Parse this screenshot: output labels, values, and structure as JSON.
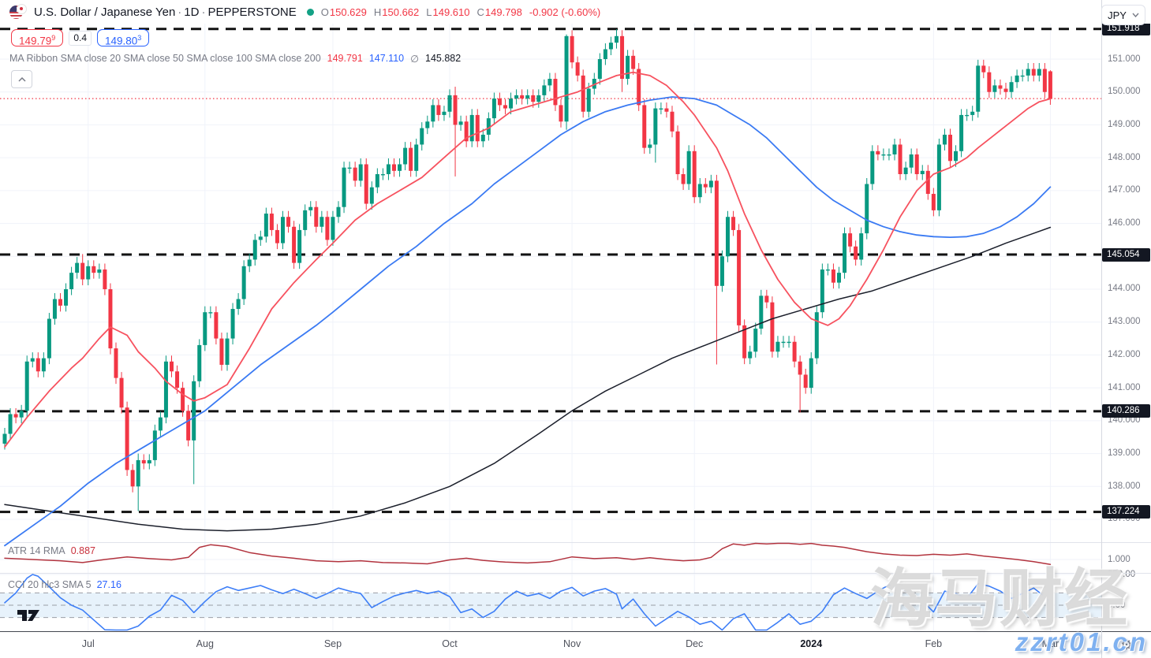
{
  "header": {
    "symbol": "U.S. Dollar / Japanese Yen",
    "separator": "·",
    "interval": "1D",
    "exchange": "PEPPERSTONE",
    "ohlc": [
      {
        "k": "O",
        "v": "150.629"
      },
      {
        "k": "H",
        "v": "150.662"
      },
      {
        "k": "L",
        "v": "149.610"
      },
      {
        "k": "C",
        "v": "149.798"
      }
    ],
    "change": "-0.902 (-0.60%)"
  },
  "quote": {
    "bid_main": "149.79",
    "bid_sup": "9",
    "spread": "0.4",
    "ask_main": "149.80",
    "ask_sup": "3"
  },
  "ma_ribbon": {
    "label": "MA Ribbon SMA close 20 SMA close 50 SMA close 100 SMA close 200",
    "values": [
      {
        "text": "149.791",
        "color": "#F23645"
      },
      {
        "text": "147.110",
        "color": "#2962FF"
      },
      {
        "text": "∅",
        "color": "#787B86"
      },
      {
        "text": "145.882",
        "color": "#131722"
      }
    ]
  },
  "indicators": {
    "atr": {
      "label": "ATR 14 RMA",
      "value": "0.887",
      "value_color": "#C9303C"
    },
    "cci": {
      "label": "CCI 20 hlc3 SMA 5",
      "value": "27.16",
      "value_color": "#2962FF"
    }
  },
  "price_axis": {
    "currency": "JPY",
    "atr_ticks": [
      {
        "label": "1.000",
        "value": 1
      }
    ],
    "cci_ticks": [
      {
        "label": "250.00",
        "value": 250
      },
      {
        "label": "0.00",
        "value": 0
      }
    ]
  },
  "time_axis": {
    "ticks": [
      {
        "label": "Jul",
        "i": 15
      },
      {
        "label": "Aug",
        "i": 36
      },
      {
        "label": "Sep",
        "i": 59
      },
      {
        "label": "Oct",
        "i": 80
      },
      {
        "label": "Nov",
        "i": 102
      },
      {
        "label": "Dec",
        "i": 124
      },
      {
        "label": "2024",
        "i": 145,
        "year": true
      },
      {
        "label": "Feb",
        "i": 167
      },
      {
        "label": "Mar",
        "i": 188
      }
    ]
  },
  "watermark": {
    "line1": "海马财经",
    "line2": "zzrt01.cn"
  },
  "colors": {
    "up": "#089981",
    "down": "#F23645",
    "sma20": "#F7525F",
    "sma50": "#3A7AF3",
    "sma200": "#1B1F2B",
    "atr_line": "#B2333E",
    "cci_line": "#3D7EF7",
    "level": "#111111",
    "grid": "#F0F3FA",
    "band": "#E7F2FB",
    "band_line": "#9A9DA6"
  },
  "chart_data": {
    "type": "candlestick",
    "title": "U.S. Dollar / Japanese Yen 1D PEPPERSTONE",
    "ylabel": "JPY",
    "ylim_main": [
      136.3,
      152.1
    ],
    "grid": true,
    "closes": [
      139.6,
      140.2,
      140.1,
      140.3,
      141.8,
      141.9,
      141.5,
      141.9,
      143.1,
      143.7,
      143.5,
      144.0,
      144.5,
      144.8,
      144.3,
      144.7,
      144.5,
      144.6,
      144.0,
      142.2,
      141.3,
      140.4,
      138.5,
      138.0,
      138.8,
      138.7,
      138.8,
      139.7,
      140.1,
      141.8,
      141.5,
      141.0,
      140.3,
      139.4,
      141.2,
      142.3,
      143.3,
      143.3,
      142.5,
      141.7,
      142.5,
      143.4,
      143.7,
      144.7,
      144.9,
      145.5,
      145.6,
      146.3,
      145.8,
      145.4,
      146.2,
      145.9,
      144.8,
      145.8,
      146.4,
      146.5,
      145.9,
      146.2,
      145.5,
      146.2,
      146.5,
      147.7,
      147.7,
      147.3,
      147.8,
      146.6,
      147.1,
      147.5,
      147.5,
      147.8,
      147.6,
      147.8,
      148.3,
      147.6,
      148.4,
      148.9,
      149.1,
      149.6,
      149.3,
      149.4,
      149.9,
      149.0,
      149.1,
      148.5,
      149.3,
      148.5,
      148.7,
      149.2,
      149.8,
      149.6,
      149.5,
      149.8,
      149.9,
      149.8,
      149.9,
      149.7,
      149.9,
      150.2,
      150.4,
      149.6,
      149.1,
      151.7,
      150.9,
      150.5,
      149.4,
      150.1,
      150.4,
      151.0,
      151.3,
      151.5,
      151.7,
      150.4,
      151.1,
      150.7,
      149.6,
      148.3,
      148.4,
      149.5,
      149.5,
      149.4,
      148.8,
      147.5,
      147.2,
      148.2,
      146.8,
      147.2,
      147.1,
      147.3,
      144.1,
      145.0,
      146.2,
      145.8,
      142.9,
      141.9,
      142.1,
      142.8,
      143.8,
      143.6,
      142.1,
      142.4,
      142.4,
      142.4,
      141.8,
      141.4,
      141.0,
      141.9,
      143.3,
      144.6,
      144.6,
      144.2,
      144.5,
      145.7,
      145.3,
      144.9,
      145.7,
      147.2,
      148.2,
      148.1,
      148.1,
      148.1,
      148.4,
      147.5,
      147.7,
      148.1,
      147.5,
      147.6,
      146.9,
      146.4,
      148.4,
      148.7,
      147.9,
      148.2,
      149.3,
      149.3,
      149.4,
      150.8,
      150.6,
      150.0,
      150.2,
      150.1,
      150.0,
      150.3,
      150.5,
      150.5,
      150.7,
      150.5,
      150.7,
      150.0,
      149.798
    ],
    "open_overrides": {
      "188": 150.629
    },
    "wick_overrides": {
      "14": [
        145.07,
        null
      ],
      "24": [
        139.0,
        137.25
      ],
      "34": [
        null,
        138.07
      ],
      "81": [
        150.16,
        147.43
      ],
      "101": [
        151.75,
        148.85
      ],
      "110": [
        151.91,
        null
      ],
      "111": [
        null,
        150.0
      ],
      "117": [
        null,
        147.85
      ],
      "128": [
        null,
        141.71
      ],
      "143": [
        null,
        140.25
      ],
      "188": [
        150.662,
        149.61
      ]
    },
    "levels": [
      151.918,
      145.054,
      140.286,
      137.224
    ],
    "close_line": 149.798,
    "price_ticks": [
      151,
      150,
      149,
      148,
      147,
      146,
      145,
      144,
      143,
      142,
      141,
      140,
      139,
      138,
      137
    ],
    "sma20": [
      [
        0,
        139.2
      ],
      [
        4,
        140.1
      ],
      [
        8,
        140.9
      ],
      [
        12,
        141.6
      ],
      [
        14,
        141.9
      ],
      [
        17,
        142.5
      ],
      [
        19,
        142.85
      ],
      [
        22,
        142.6
      ],
      [
        24,
        142.1
      ],
      [
        27,
        141.6
      ],
      [
        29,
        141.2
      ],
      [
        32,
        140.8
      ],
      [
        34,
        140.6
      ],
      [
        36,
        140.7
      ],
      [
        40,
        141.1
      ],
      [
        44,
        142.2
      ],
      [
        48,
        143.4
      ],
      [
        52,
        144.2
      ],
      [
        56,
        144.9
      ],
      [
        59,
        145.4
      ],
      [
        63,
        146.1
      ],
      [
        67,
        146.6
      ],
      [
        71,
        147.0
      ],
      [
        75,
        147.4
      ],
      [
        79,
        148.0
      ],
      [
        83,
        148.6
      ],
      [
        87,
        148.9
      ],
      [
        91,
        149.4
      ],
      [
        95,
        149.6
      ],
      [
        99,
        149.8
      ],
      [
        103,
        150.0
      ],
      [
        107,
        150.3
      ],
      [
        110,
        150.5
      ],
      [
        113,
        150.6
      ],
      [
        116,
        150.5
      ],
      [
        119,
        150.2
      ],
      [
        122,
        149.7
      ],
      [
        124,
        149.3
      ],
      [
        126,
        148.8
      ],
      [
        128,
        148.3
      ],
      [
        130,
        147.6
      ],
      [
        133,
        146.3
      ],
      [
        136,
        145.2
      ],
      [
        139,
        144.3
      ],
      [
        142,
        143.6
      ],
      [
        145,
        143.1
      ],
      [
        148,
        142.9
      ],
      [
        150,
        143.1
      ],
      [
        152,
        143.5
      ],
      [
        155,
        144.3
      ],
      [
        158,
        145.2
      ],
      [
        161,
        146.2
      ],
      [
        164,
        147.0
      ],
      [
        167,
        147.5
      ],
      [
        170,
        147.7
      ],
      [
        173,
        148.0
      ],
      [
        175,
        148.3
      ],
      [
        178,
        148.7
      ],
      [
        181,
        149.1
      ],
      [
        184,
        149.5
      ],
      [
        186,
        149.7
      ],
      [
        188,
        149.791
      ]
    ],
    "sma50": [
      [
        0,
        136.2
      ],
      [
        5,
        136.8
      ],
      [
        10,
        137.4
      ],
      [
        15,
        138.1
      ],
      [
        20,
        138.7
      ],
      [
        25,
        139.2
      ],
      [
        29,
        139.6
      ],
      [
        33,
        140.0
      ],
      [
        36,
        140.3
      ],
      [
        41,
        141.0
      ],
      [
        46,
        141.7
      ],
      [
        51,
        142.3
      ],
      [
        56,
        142.9
      ],
      [
        59,
        143.3
      ],
      [
        64,
        144.0
      ],
      [
        69,
        144.7
      ],
      [
        74,
        145.3
      ],
      [
        79,
        146.0
      ],
      [
        84,
        146.6
      ],
      [
        88,
        147.2
      ],
      [
        92,
        147.7
      ],
      [
        96,
        148.2
      ],
      [
        100,
        148.7
      ],
      [
        104,
        149.1
      ],
      [
        108,
        149.4
      ],
      [
        112,
        149.6
      ],
      [
        116,
        149.75
      ],
      [
        120,
        149.85
      ],
      [
        124,
        149.8
      ],
      [
        128,
        149.6
      ],
      [
        131,
        149.3
      ],
      [
        134,
        149.0
      ],
      [
        137,
        148.6
      ],
      [
        140,
        148.1
      ],
      [
        143,
        147.6
      ],
      [
        146,
        147.1
      ],
      [
        149,
        146.7
      ],
      [
        152,
        146.4
      ],
      [
        155,
        146.1
      ],
      [
        158,
        145.9
      ],
      [
        161,
        145.75
      ],
      [
        164,
        145.65
      ],
      [
        167,
        145.6
      ],
      [
        170,
        145.58
      ],
      [
        173,
        145.6
      ],
      [
        176,
        145.7
      ],
      [
        179,
        145.9
      ],
      [
        182,
        146.2
      ],
      [
        185,
        146.6
      ],
      [
        188,
        147.11
      ]
    ],
    "sma200": [
      [
        0,
        137.45
      ],
      [
        8,
        137.25
      ],
      [
        16,
        137.05
      ],
      [
        24,
        136.85
      ],
      [
        32,
        136.7
      ],
      [
        40,
        136.65
      ],
      [
        48,
        136.7
      ],
      [
        56,
        136.85
      ],
      [
        64,
        137.1
      ],
      [
        72,
        137.5
      ],
      [
        80,
        138.0
      ],
      [
        88,
        138.7
      ],
      [
        96,
        139.6
      ],
      [
        102,
        140.3
      ],
      [
        108,
        140.9
      ],
      [
        114,
        141.4
      ],
      [
        120,
        141.9
      ],
      [
        126,
        142.3
      ],
      [
        132,
        142.7
      ],
      [
        138,
        143.1
      ],
      [
        144,
        143.4
      ],
      [
        150,
        143.7
      ],
      [
        156,
        143.95
      ],
      [
        162,
        144.3
      ],
      [
        168,
        144.65
      ],
      [
        174,
        145.0
      ],
      [
        180,
        145.4
      ],
      [
        185,
        145.7
      ],
      [
        188,
        145.882
      ]
    ],
    "atr": [
      [
        0,
        1.03
      ],
      [
        5,
        1.0
      ],
      [
        10,
        0.97
      ],
      [
        14,
        0.93
      ],
      [
        18,
        1.0
      ],
      [
        22,
        1.06
      ],
      [
        26,
        1.02
      ],
      [
        30,
        0.99
      ],
      [
        33,
        1.05
      ],
      [
        35,
        1.28
      ],
      [
        37,
        1.34
      ],
      [
        40,
        1.3
      ],
      [
        44,
        1.16
      ],
      [
        48,
        1.08
      ],
      [
        52,
        1.03
      ],
      [
        56,
        0.97
      ],
      [
        60,
        0.95
      ],
      [
        64,
        0.97
      ],
      [
        68,
        0.93
      ],
      [
        72,
        0.92
      ],
      [
        76,
        0.9
      ],
      [
        80,
        0.99
      ],
      [
        83,
        1.03
      ],
      [
        86,
        0.98
      ],
      [
        90,
        0.94
      ],
      [
        94,
        0.92
      ],
      [
        98,
        0.95
      ],
      [
        102,
        1.06
      ],
      [
        106,
        1.02
      ],
      [
        110,
        1.04
      ],
      [
        113,
        1.0
      ],
      [
        116,
        1.04
      ],
      [
        119,
        1.0
      ],
      [
        122,
        0.97
      ],
      [
        125,
        0.99
      ],
      [
        127,
        1.05
      ],
      [
        129,
        1.25
      ],
      [
        131,
        1.36
      ],
      [
        133,
        1.33
      ],
      [
        135,
        1.38
      ],
      [
        137,
        1.36
      ],
      [
        139,
        1.41
      ],
      [
        141,
        1.38
      ],
      [
        143,
        1.35
      ],
      [
        145,
        1.37
      ],
      [
        147,
        1.33
      ],
      [
        149,
        1.31
      ],
      [
        151,
        1.28
      ],
      [
        153,
        1.23
      ],
      [
        155,
        1.18
      ],
      [
        158,
        1.13
      ],
      [
        161,
        1.1
      ],
      [
        164,
        1.09
      ],
      [
        167,
        1.12
      ],
      [
        170,
        1.1
      ],
      [
        173,
        1.13
      ],
      [
        176,
        1.08
      ],
      [
        179,
        1.04
      ],
      [
        182,
        1.0
      ],
      [
        185,
        0.95
      ],
      [
        188,
        0.887
      ]
    ],
    "cci_band": [
      100,
      -100
    ],
    "cci": [
      [
        0,
        20
      ],
      [
        2,
        100
      ],
      [
        4,
        220
      ],
      [
        5,
        250
      ],
      [
        6,
        235
      ],
      [
        8,
        150
      ],
      [
        10,
        60
      ],
      [
        12,
        0
      ],
      [
        14,
        -40
      ],
      [
        16,
        -120
      ],
      [
        18,
        -200
      ],
      [
        20,
        -235
      ],
      [
        22,
        -240
      ],
      [
        24,
        -170
      ],
      [
        26,
        -90
      ],
      [
        28,
        -40
      ],
      [
        30,
        80
      ],
      [
        32,
        40
      ],
      [
        34,
        -60
      ],
      [
        36,
        30
      ],
      [
        38,
        110
      ],
      [
        40,
        150
      ],
      [
        42,
        120
      ],
      [
        44,
        140
      ],
      [
        46,
        160
      ],
      [
        48,
        125
      ],
      [
        50,
        95
      ],
      [
        52,
        130
      ],
      [
        54,
        95
      ],
      [
        56,
        55
      ],
      [
        58,
        95
      ],
      [
        60,
        140
      ],
      [
        62,
        115
      ],
      [
        64,
        95
      ],
      [
        66,
        -20
      ],
      [
        68,
        30
      ],
      [
        70,
        75
      ],
      [
        72,
        100
      ],
      [
        74,
        120
      ],
      [
        76,
        95
      ],
      [
        78,
        115
      ],
      [
        80,
        70
      ],
      [
        82,
        -60
      ],
      [
        84,
        -30
      ],
      [
        86,
        -100
      ],
      [
        88,
        -50
      ],
      [
        90,
        50
      ],
      [
        92,
        115
      ],
      [
        94,
        75
      ],
      [
        96,
        95
      ],
      [
        98,
        55
      ],
      [
        100,
        115
      ],
      [
        102,
        145
      ],
      [
        104,
        75
      ],
      [
        106,
        115
      ],
      [
        108,
        135
      ],
      [
        110,
        90
      ],
      [
        111,
        -30
      ],
      [
        113,
        50
      ],
      [
        115,
        -70
      ],
      [
        117,
        -170
      ],
      [
        119,
        -110
      ],
      [
        121,
        -50
      ],
      [
        123,
        -95
      ],
      [
        125,
        -155
      ],
      [
        127,
        -130
      ],
      [
        129,
        -245
      ],
      [
        131,
        -110
      ],
      [
        133,
        -70
      ],
      [
        135,
        -215
      ],
      [
        137,
        -225
      ],
      [
        139,
        -140
      ],
      [
        141,
        -70
      ],
      [
        143,
        -155
      ],
      [
        145,
        -130
      ],
      [
        147,
        -50
      ],
      [
        149,
        85
      ],
      [
        151,
        140
      ],
      [
        153,
        95
      ],
      [
        155,
        55
      ],
      [
        157,
        115
      ],
      [
        159,
        165
      ],
      [
        161,
        135
      ],
      [
        163,
        95
      ],
      [
        165,
        35
      ],
      [
        167,
        -55
      ],
      [
        169,
        115
      ],
      [
        171,
        95
      ],
      [
        173,
        55
      ],
      [
        175,
        175
      ],
      [
        177,
        155
      ],
      [
        179,
        115
      ],
      [
        181,
        55
      ],
      [
        183,
        95
      ],
      [
        185,
        140
      ],
      [
        187,
        70
      ],
      [
        188,
        27.16
      ]
    ]
  }
}
